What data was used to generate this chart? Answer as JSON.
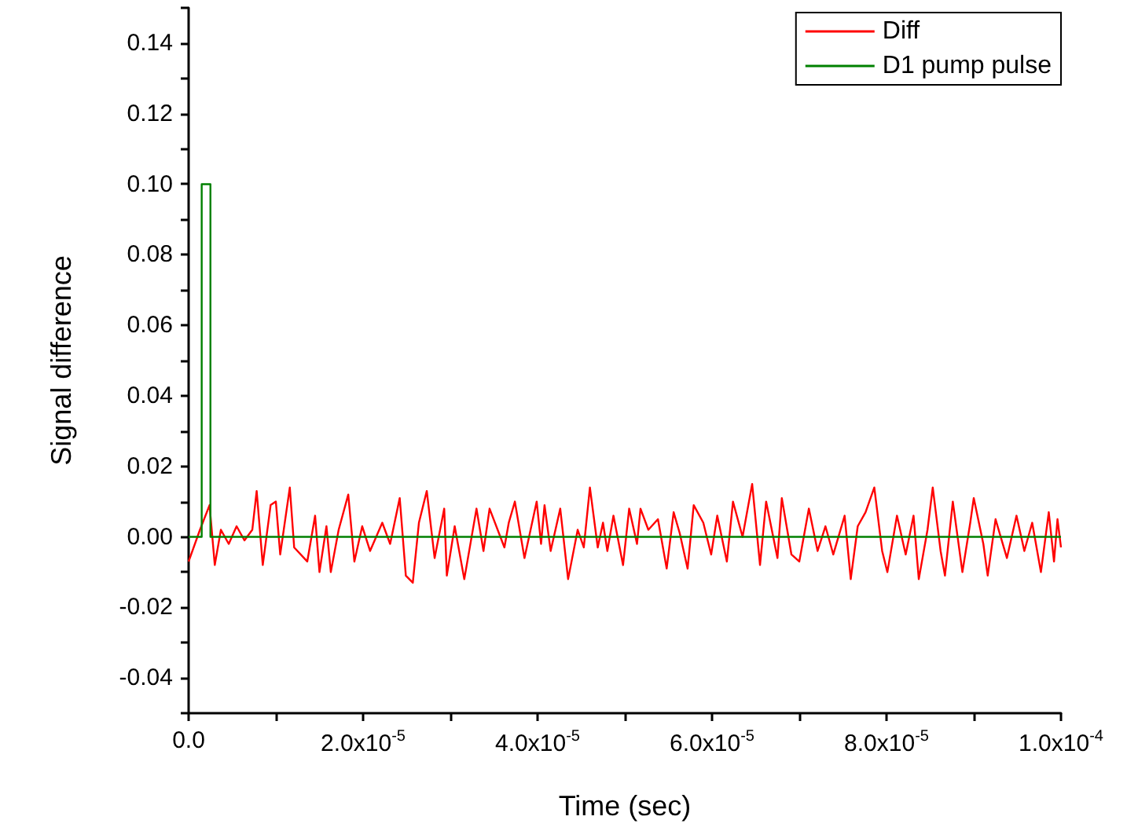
{
  "chart_data": {
    "type": "line",
    "xlabel": "Time (sec)",
    "ylabel": "Signal difference",
    "legend": "top right",
    "marker": "none",
    "line_style": "solid",
    "xlim": [
      0,
      0.0001
    ],
    "ylim": [
      -0.05,
      0.15
    ],
    "xticks": [
      {
        "value": 0,
        "label": "0.0"
      },
      {
        "value": 1e-05,
        "label": null
      },
      {
        "value": 2e-05,
        "label": "2.0x10$^{-5}$"
      },
      {
        "value": 3e-05,
        "label": null
      },
      {
        "value": 4e-05,
        "label": "4.0x10$^{-5}$"
      },
      {
        "value": 5e-05,
        "label": null
      },
      {
        "value": 6e-05,
        "label": "6.0x10$^{-5}$"
      },
      {
        "value": 7e-05,
        "label": null
      },
      {
        "value": 8e-05,
        "label": "8.0x10$^{-5}$"
      },
      {
        "value": 9e-05,
        "label": null
      },
      {
        "value": 0.0001,
        "label": "1.0x10$^{-4}$"
      }
    ],
    "yticks": [
      {
        "value": -0.05,
        "label": null
      },
      -0.04,
      {
        "value": -0.03,
        "label": null
      },
      -0.02,
      {
        "value": -0.01,
        "label": null
      },
      {
        "value": 0,
        "label": "0.00"
      },
      {
        "value": 0.01,
        "label": null
      },
      0.02,
      {
        "value": 0.03,
        "label": null
      },
      0.04,
      {
        "value": 0.05,
        "label": null
      },
      0.06,
      {
        "value": 0.07,
        "label": null
      },
      0.08,
      {
        "value": 0.09,
        "label": null
      },
      {
        "value": 0.1,
        "label": "0.10"
      },
      {
        "value": 0.11,
        "label": null
      },
      0.12,
      {
        "value": 0.13,
        "label": null
      },
      0.14,
      {
        "value": 0.15,
        "label": null
      }
    ],
    "series": [
      {
        "name": "Diff",
        "color": "#ff0000",
        "x": [
          0,
          1.3e-06,
          2.4e-06,
          3e-06,
          3.7e-06,
          4.6e-06,
          5.5e-06,
          6.4e-06,
          7.3e-06,
          7.8e-06,
          8.5e-06,
          9.4e-06,
          1e-05,
          1.05e-05,
          1.16e-05,
          1.21e-05,
          1.36e-05,
          1.45e-05,
          1.5e-05,
          1.58e-05,
          1.63e-05,
          1.72e-05,
          1.83e-05,
          1.9e-05,
          1.99e-05,
          2.08e-05,
          2.22e-05,
          2.31e-05,
          2.42e-05,
          2.49e-05,
          2.57e-05,
          2.64e-05,
          2.73e-05,
          2.82e-05,
          2.93e-05,
          2.96e-05,
          3.05e-05,
          3.16e-05,
          3.3e-05,
          3.38e-05,
          3.45e-05,
          3.62e-05,
          3.67e-05,
          3.74e-05,
          3.85e-05,
          3.92e-05,
          3.99e-05,
          4.04e-05,
          4.08e-05,
          4.15e-05,
          4.26e-05,
          4.35e-05,
          4.46e-05,
          4.53e-05,
          4.6e-05,
          4.69e-05,
          4.75e-05,
          4.8e-05,
          4.87e-05,
          4.98e-05,
          5.05e-05,
          5.14e-05,
          5.18e-05,
          5.27e-05,
          5.38e-05,
          5.48e-05,
          5.56e-05,
          5.63e-05,
          5.72e-05,
          5.79e-05,
          5.9e-05,
          5.99e-05,
          6.06e-05,
          6.17e-05,
          6.24e-05,
          6.35e-05,
          6.46e-05,
          6.55e-05,
          6.62e-05,
          6.75e-05,
          6.8e-05,
          6.91e-05,
          7e-05,
          7.11e-05,
          7.21e-05,
          7.3e-05,
          7.39e-05,
          7.52e-05,
          7.59e-05,
          7.67e-05,
          7.76e-05,
          7.86e-05,
          7.95e-05,
          8.01e-05,
          8.12e-05,
          8.22e-05,
          8.31e-05,
          8.37e-05,
          8.47e-05,
          8.53e-05,
          8.62e-05,
          8.67e-05,
          8.76e-05,
          8.87e-05,
          8.96e-05,
          9e-05,
          9.11e-05,
          9.16e-05,
          9.25e-05,
          9.38e-05,
          9.49e-05,
          9.58e-05,
          9.67e-05,
          9.77e-05,
          9.86e-05,
          9.92e-05,
          9.96e-05,
          0.0001
        ],
        "values": [
          -0.007,
          0.002,
          0.009,
          -0.008,
          0.002,
          -0.002,
          0.003,
          -0.001,
          0.002,
          0.013,
          -0.008,
          0.009,
          0.01,
          -0.005,
          0.014,
          -0.003,
          -0.007,
          0.006,
          -0.01,
          0.003,
          -0.01,
          0.002,
          0.012,
          -0.007,
          0.003,
          -0.004,
          0.004,
          -0.002,
          0.011,
          -0.011,
          -0.013,
          0.004,
          0.013,
          -0.006,
          0.008,
          -0.011,
          0.003,
          -0.012,
          0.008,
          -0.004,
          0.008,
          -0.003,
          0.004,
          0.01,
          -0.006,
          0.002,
          0.01,
          -0.002,
          0.009,
          -0.004,
          0.008,
          -0.012,
          0.002,
          -0.003,
          0.014,
          -0.003,
          0.004,
          -0.004,
          0.006,
          -0.008,
          0.008,
          -0.002,
          0.008,
          0.002,
          0.005,
          -0.009,
          0.007,
          0.001,
          -0.009,
          0.009,
          0.004,
          -0.005,
          0.006,
          -0.007,
          0.01,
          0.0,
          0.015,
          -0.008,
          0.01,
          -0.006,
          0.011,
          -0.005,
          -0.007,
          0.008,
          -0.004,
          0.003,
          -0.005,
          0.006,
          -0.012,
          0.003,
          0.007,
          0.014,
          -0.004,
          -0.01,
          0.006,
          -0.005,
          0.006,
          -0.012,
          0.002,
          0.014,
          -0.004,
          -0.011,
          0.01,
          -0.01,
          0.004,
          0.011,
          -0.002,
          -0.011,
          0.005,
          -0.006,
          0.006,
          -0.004,
          0.004,
          -0.01,
          0.007,
          -0.007,
          0.005,
          -0.003
        ]
      },
      {
        "name": "D1 pump pulse",
        "color": "#008000",
        "x": [
          0,
          1.5e-06,
          1.5e-06,
          2.5e-06,
          2.5e-06,
          0.0001
        ],
        "values": [
          0,
          0,
          0.1,
          0.1,
          0,
          0
        ]
      }
    ]
  }
}
